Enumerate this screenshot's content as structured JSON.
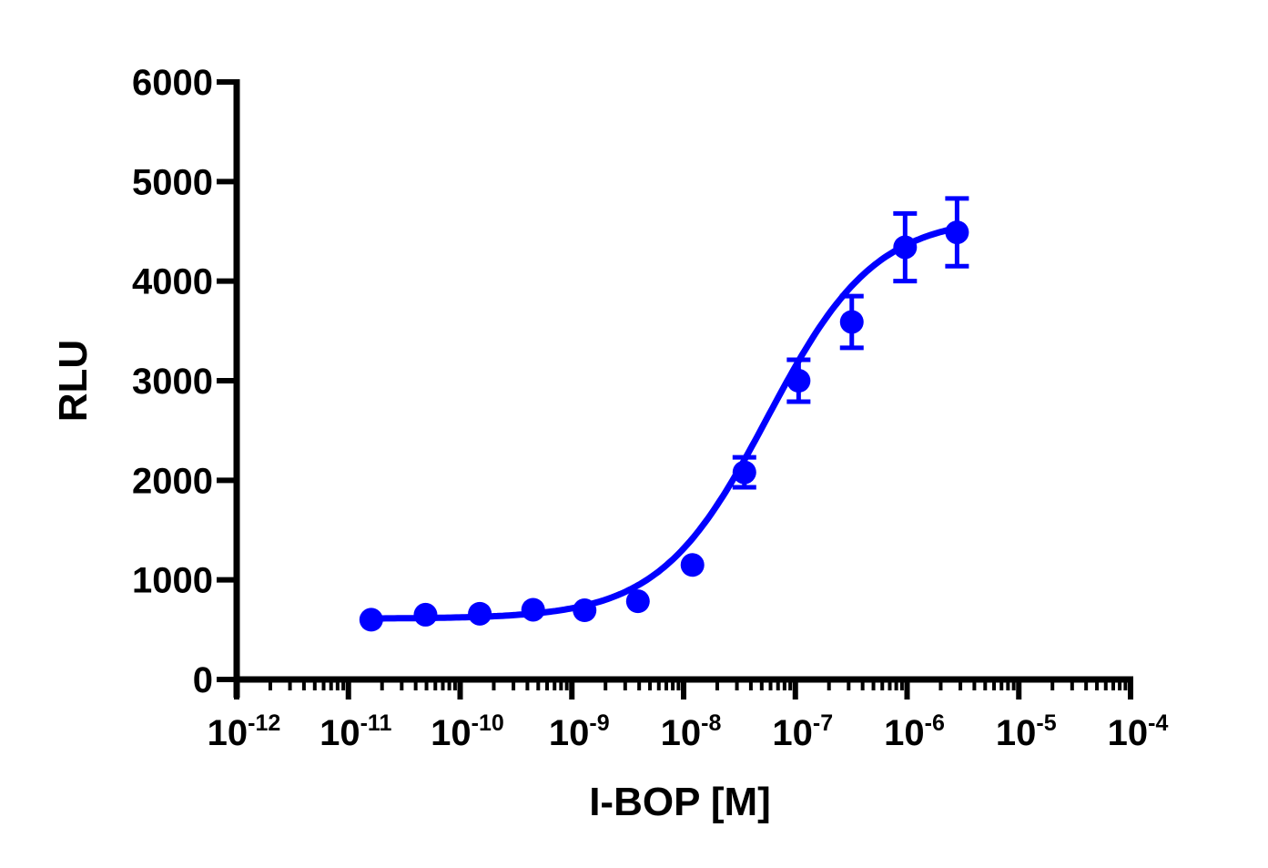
{
  "chart_data": {
    "type": "scatter",
    "title": "",
    "xlabel": "I-BOP [M]",
    "ylabel": "RLU",
    "xscale": "log",
    "xlim": [
      1e-12,
      0.0001
    ],
    "ylim": [
      0,
      6000
    ],
    "grid": false,
    "legend": null,
    "series_color": "#0000ff",
    "x_ticks": [
      {
        "base": "10",
        "exp": "-12"
      },
      {
        "base": "10",
        "exp": "-11"
      },
      {
        "base": "10",
        "exp": "-10"
      },
      {
        "base": "10",
        "exp": "-9"
      },
      {
        "base": "10",
        "exp": "-8"
      },
      {
        "base": "10",
        "exp": "-7"
      },
      {
        "base": "10",
        "exp": "-6"
      },
      {
        "base": "10",
        "exp": "-5"
      },
      {
        "base": "10",
        "exp": "-4"
      }
    ],
    "y_ticks": [
      "0",
      "1000",
      "2000",
      "3000",
      "4000",
      "5000",
      "6000"
    ],
    "series": [
      {
        "name": "I-BOP",
        "points": [
          {
            "x": 1.6e-11,
            "y": 600,
            "err": 0
          },
          {
            "x": 4.9e-11,
            "y": 650,
            "err": 0
          },
          {
            "x": 1.5e-10,
            "y": 660,
            "err": 0
          },
          {
            "x": 4.5e-10,
            "y": 700,
            "err": 0
          },
          {
            "x": 1.3e-09,
            "y": 695,
            "err": 0
          },
          {
            "x": 3.9e-09,
            "y": 785,
            "err": 0
          },
          {
            "x": 1.2e-08,
            "y": 1150,
            "err": 0
          },
          {
            "x": 3.5e-08,
            "y": 2080,
            "err": 150
          },
          {
            "x": 1.07e-07,
            "y": 3000,
            "err": 210
          },
          {
            "x": 3.2e-07,
            "y": 3590,
            "err": 260
          },
          {
            "x": 9.6e-07,
            "y": 4340,
            "err": 340
          },
          {
            "x": 2.8e-06,
            "y": 4490,
            "err": 340
          }
        ],
        "fit": {
          "model": "4PL sigmoid",
          "bottom": 610,
          "top": 4650,
          "logEC50": -7.25,
          "hill": 0.9,
          "x_range": [
            1.6e-11,
            2.8e-06
          ]
        }
      }
    ]
  }
}
